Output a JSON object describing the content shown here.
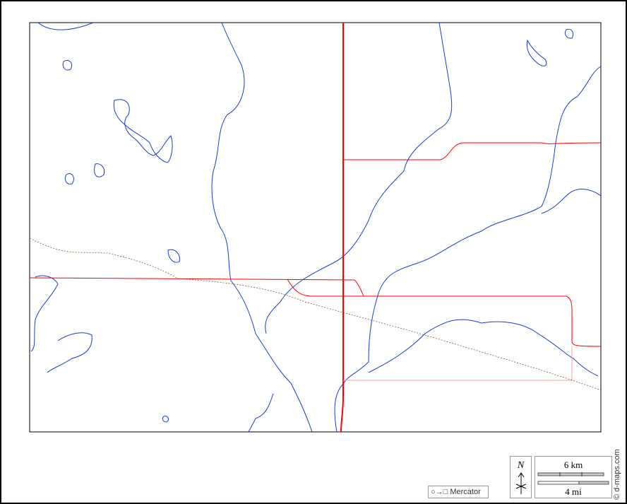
{
  "map": {
    "frame_color": "#000000",
    "river_color": "#1a3ccc",
    "road_color": "#ff0000",
    "minor_road_color": "#f4a0a0",
    "boundary_color": "#8b5a2b"
  },
  "legend": {
    "projection": "Mercator",
    "projection_icon": "circle-to-square-icon",
    "north_label": "N",
    "scale_km": "6 km",
    "scale_mi": "4 mi"
  },
  "credit": "© d-maps.com"
}
